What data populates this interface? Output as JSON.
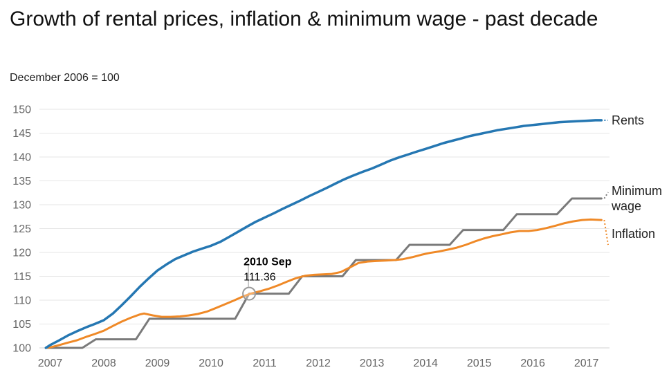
{
  "header": {
    "title": "Growth of rental prices, inflation & minimum wage - past decade",
    "subtitle": "December 2006 = 100"
  },
  "chart_data": {
    "type": "line",
    "title": "Growth of rental prices, inflation & minimum wage - past decade",
    "subtitle": "December 2006 = 100",
    "grid": "horizontal",
    "legend_position": "right-edge-labels",
    "x_axis": {
      "range": [
        2006.8,
        2017.43
      ],
      "ticks": [
        2007,
        2008,
        2009,
        2010,
        2011,
        2012,
        2013,
        2014,
        2015,
        2016,
        2017
      ],
      "tick_labels": [
        "2007",
        "2008",
        "2009",
        "2010",
        "2011",
        "2012",
        "2013",
        "2014",
        "2015",
        "2016",
        "2017"
      ]
    },
    "y_axis": {
      "range": [
        100,
        150
      ],
      "ticks": [
        100,
        105,
        110,
        115,
        120,
        125,
        130,
        135,
        140,
        145,
        150
      ],
      "tick_labels": [
        "100",
        "105",
        "110",
        "115",
        "120",
        "125",
        "130",
        "135",
        "140",
        "145",
        "150"
      ]
    },
    "series": [
      {
        "id": "minimum-wage",
        "name": "Minimum wage",
        "label_lines": [
          "Minimum",
          "wage"
        ],
        "color": "#7a7a7a",
        "width": 3,
        "label_dy": 0,
        "conn_dy": -9,
        "points": [
          [
            2006.92,
            100
          ],
          [
            2007.6,
            100
          ],
          [
            2007.85,
            101.8
          ],
          [
            2008.6,
            101.8
          ],
          [
            2008.85,
            106.1
          ],
          [
            2010.45,
            106.1
          ],
          [
            2010.71,
            111.36
          ],
          [
            2011.45,
            111.36
          ],
          [
            2011.7,
            115.0
          ],
          [
            2012.45,
            115.0
          ],
          [
            2012.7,
            118.4
          ],
          [
            2013.45,
            118.4
          ],
          [
            2013.7,
            121.6
          ],
          [
            2014.45,
            121.6
          ],
          [
            2014.7,
            124.7
          ],
          [
            2015.45,
            124.7
          ],
          [
            2015.7,
            128.0
          ],
          [
            2016.45,
            128.0
          ],
          [
            2016.73,
            131.3
          ],
          [
            2017.28,
            131.3
          ]
        ]
      },
      {
        "id": "inflation",
        "name": "Inflation",
        "label_lines": [
          "Inflation"
        ],
        "color": "#ef8927",
        "width": 3,
        "label_dy": 20,
        "conn_dy": 16,
        "points": [
          [
            2006.92,
            100
          ],
          [
            2007.0,
            100.1
          ],
          [
            2007.17,
            100.6
          ],
          [
            2007.33,
            101.1
          ],
          [
            2007.5,
            101.6
          ],
          [
            2007.67,
            102.3
          ],
          [
            2007.83,
            102.9
          ],
          [
            2008.0,
            103.6
          ],
          [
            2008.17,
            104.6
          ],
          [
            2008.33,
            105.5
          ],
          [
            2008.5,
            106.3
          ],
          [
            2008.67,
            107.0
          ],
          [
            2008.75,
            107.2
          ],
          [
            2008.92,
            106.8
          ],
          [
            2009.08,
            106.5
          ],
          [
            2009.25,
            106.5
          ],
          [
            2009.42,
            106.6
          ],
          [
            2009.58,
            106.8
          ],
          [
            2009.75,
            107.1
          ],
          [
            2009.92,
            107.6
          ],
          [
            2010.08,
            108.3
          ],
          [
            2010.25,
            109.1
          ],
          [
            2010.42,
            109.9
          ],
          [
            2010.58,
            110.7
          ],
          [
            2010.75,
            111.4
          ],
          [
            2010.92,
            111.9
          ],
          [
            2011.08,
            112.4
          ],
          [
            2011.25,
            113.1
          ],
          [
            2011.42,
            113.9
          ],
          [
            2011.58,
            114.6
          ],
          [
            2011.75,
            115.1
          ],
          [
            2011.92,
            115.3
          ],
          [
            2012.08,
            115.4
          ],
          [
            2012.25,
            115.5
          ],
          [
            2012.42,
            115.9
          ],
          [
            2012.58,
            116.8
          ],
          [
            2012.75,
            117.8
          ],
          [
            2012.92,
            118.1
          ],
          [
            2013.08,
            118.2
          ],
          [
            2013.25,
            118.3
          ],
          [
            2013.42,
            118.4
          ],
          [
            2013.58,
            118.6
          ],
          [
            2013.75,
            119.0
          ],
          [
            2013.92,
            119.5
          ],
          [
            2014.08,
            119.9
          ],
          [
            2014.25,
            120.2
          ],
          [
            2014.42,
            120.6
          ],
          [
            2014.58,
            121.0
          ],
          [
            2014.75,
            121.6
          ],
          [
            2014.92,
            122.3
          ],
          [
            2015.08,
            122.9
          ],
          [
            2015.25,
            123.4
          ],
          [
            2015.42,
            123.8
          ],
          [
            2015.58,
            124.2
          ],
          [
            2015.75,
            124.5
          ],
          [
            2015.92,
            124.5
          ],
          [
            2016.08,
            124.7
          ],
          [
            2016.25,
            125.1
          ],
          [
            2016.42,
            125.6
          ],
          [
            2016.58,
            126.1
          ],
          [
            2016.75,
            126.5
          ],
          [
            2016.92,
            126.8
          ],
          [
            2017.08,
            126.9
          ],
          [
            2017.28,
            126.8
          ]
        ]
      },
      {
        "id": "rents",
        "name": "Rents",
        "label_lines": [
          "Rents"
        ],
        "color": "#2577b2",
        "width": 3.5,
        "label_dy": 0,
        "conn_dy": 0,
        "points": [
          [
            2006.92,
            100
          ],
          [
            2007.0,
            100.6
          ],
          [
            2007.17,
            101.6
          ],
          [
            2007.33,
            102.6
          ],
          [
            2007.5,
            103.5
          ],
          [
            2007.67,
            104.3
          ],
          [
            2007.83,
            105.0
          ],
          [
            2008.0,
            105.8
          ],
          [
            2008.17,
            107.2
          ],
          [
            2008.33,
            108.9
          ],
          [
            2008.5,
            110.8
          ],
          [
            2008.67,
            112.8
          ],
          [
            2008.83,
            114.5
          ],
          [
            2009.0,
            116.2
          ],
          [
            2009.17,
            117.5
          ],
          [
            2009.33,
            118.6
          ],
          [
            2009.5,
            119.4
          ],
          [
            2009.67,
            120.2
          ],
          [
            2009.83,
            120.8
          ],
          [
            2010.0,
            121.4
          ],
          [
            2010.17,
            122.2
          ],
          [
            2010.33,
            123.2
          ],
          [
            2010.5,
            124.3
          ],
          [
            2010.67,
            125.4
          ],
          [
            2010.83,
            126.4
          ],
          [
            2011.0,
            127.3
          ],
          [
            2011.17,
            128.2
          ],
          [
            2011.33,
            129.1
          ],
          [
            2011.5,
            130.0
          ],
          [
            2011.67,
            130.9
          ],
          [
            2011.83,
            131.8
          ],
          [
            2012.0,
            132.7
          ],
          [
            2012.17,
            133.6
          ],
          [
            2012.33,
            134.5
          ],
          [
            2012.5,
            135.4
          ],
          [
            2012.67,
            136.2
          ],
          [
            2012.83,
            136.9
          ],
          [
            2013.0,
            137.6
          ],
          [
            2013.17,
            138.4
          ],
          [
            2013.33,
            139.2
          ],
          [
            2013.5,
            139.9
          ],
          [
            2013.67,
            140.5
          ],
          [
            2013.83,
            141.1
          ],
          [
            2014.0,
            141.7
          ],
          [
            2014.17,
            142.3
          ],
          [
            2014.33,
            142.9
          ],
          [
            2014.5,
            143.4
          ],
          [
            2014.67,
            143.9
          ],
          [
            2014.83,
            144.4
          ],
          [
            2015.0,
            144.8
          ],
          [
            2015.17,
            145.2
          ],
          [
            2015.33,
            145.6
          ],
          [
            2015.5,
            145.9
          ],
          [
            2015.67,
            146.2
          ],
          [
            2015.83,
            146.5
          ],
          [
            2016.0,
            146.7
          ],
          [
            2016.17,
            146.9
          ],
          [
            2016.33,
            147.1
          ],
          [
            2016.5,
            147.3
          ],
          [
            2016.67,
            147.4
          ],
          [
            2016.83,
            147.5
          ],
          [
            2017.0,
            147.6
          ],
          [
            2017.17,
            147.7
          ],
          [
            2017.28,
            147.7
          ]
        ]
      }
    ],
    "annotation": {
      "series": "minimum-wage",
      "date_label": "2010 Sep",
      "value_label": "111.36",
      "x": 2010.71,
      "y": 111.36
    },
    "colors": {
      "grid": "#e6e6e6",
      "axis_line": "#d2d2d2",
      "tick_text": "#666666",
      "label_text": "#222222",
      "marker": "#999999",
      "tooltip_text": "#000000"
    }
  }
}
